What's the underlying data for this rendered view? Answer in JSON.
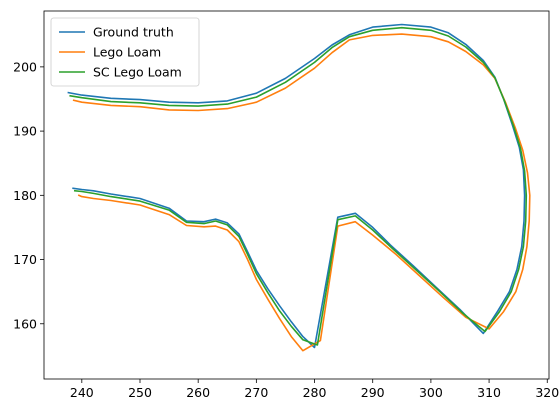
{
  "chart_data": {
    "type": "line",
    "title": "",
    "xlabel": "",
    "ylabel": "",
    "xlim": [
      233.5,
      320.3
    ],
    "ylim": [
      151.4,
      208.7
    ],
    "xticks": [
      240,
      250,
      260,
      270,
      280,
      290,
      300,
      310,
      320
    ],
    "yticks": [
      160,
      170,
      180,
      190,
      200
    ],
    "grid": false,
    "legend_position": "upper left",
    "series": [
      {
        "name": "Ground truth",
        "color": "#1f77b4",
        "x": [
          237.7,
          240.0,
          245.0,
          250.0,
          255.0,
          260.0,
          265.0,
          270.0,
          275.0,
          280.0,
          283.0,
          286.0,
          290.0,
          295.0,
          300.0,
          303.0,
          306.0,
          309.0,
          311.0,
          312.5,
          314.0,
          315.2,
          315.9,
          316.1,
          316.0,
          315.6,
          314.8,
          313.5,
          311.5,
          309.0,
          305.0,
          301.0,
          297.0,
          293.0,
          290.0,
          287.0,
          284.0,
          280.0,
          278.0,
          276.0,
          274.0,
          272.0,
          270.0,
          268.5,
          267.0,
          265.0,
          263.0,
          261.0,
          258.0,
          255.0,
          250.0,
          245.0,
          242.0,
          240.0,
          238.5
        ],
        "y": [
          196.0,
          195.6,
          195.1,
          194.9,
          194.5,
          194.4,
          194.7,
          195.9,
          198.2,
          201.3,
          203.4,
          205.0,
          206.2,
          206.6,
          206.2,
          205.3,
          203.5,
          201.0,
          198.4,
          195.0,
          191.0,
          187.5,
          184.0,
          180.0,
          176.0,
          172.0,
          168.5,
          165.0,
          162.0,
          158.5,
          162.2,
          165.6,
          169.0,
          172.3,
          175.0,
          177.2,
          176.6,
          156.3,
          158.0,
          160.3,
          162.8,
          165.4,
          168.3,
          171.2,
          174.0,
          175.7,
          176.3,
          175.9,
          176.0,
          178.0,
          179.5,
          180.2,
          180.7,
          180.9,
          181.1
        ]
      },
      {
        "name": "Lego Loam",
        "color": "#ff7f0e",
        "x": [
          238.6,
          240.0,
          245.0,
          250.0,
          255.0,
          260.0,
          265.0,
          270.0,
          275.0,
          280.0,
          283.0,
          286.0,
          290.0,
          295.0,
          300.0,
          303.0,
          306.0,
          309.0,
          311.0,
          312.8,
          314.5,
          315.8,
          316.6,
          317.0,
          316.9,
          316.5,
          315.8,
          314.6,
          312.5,
          310.0,
          306.0,
          302.0,
          298.0,
          294.0,
          290.0,
          287.0,
          284.0,
          281.0,
          278.0,
          276.0,
          274.0,
          272.0,
          270.0,
          268.5,
          267.0,
          265.0,
          263.0,
          261.0,
          258.0,
          255.0,
          250.0,
          245.0,
          242.0,
          240.0,
          239.5
        ],
        "y": [
          194.8,
          194.5,
          194.0,
          193.8,
          193.3,
          193.2,
          193.5,
          194.5,
          196.7,
          199.8,
          202.2,
          204.2,
          204.9,
          205.1,
          204.7,
          203.9,
          202.4,
          200.3,
          198.2,
          194.5,
          190.5,
          187.0,
          183.5,
          180.0,
          176.0,
          172.0,
          168.5,
          165.0,
          161.9,
          159.2,
          161.0,
          164.2,
          167.5,
          170.8,
          173.8,
          175.9,
          175.2,
          157.4,
          155.8,
          158.0,
          160.8,
          163.8,
          166.9,
          170.0,
          172.8,
          174.6,
          175.2,
          175.1,
          175.3,
          177.0,
          178.5,
          179.2,
          179.5,
          179.8,
          180.0
        ]
      },
      {
        "name": "SC Lego Loam",
        "color": "#2ca02c",
        "x": [
          238.0,
          240.0,
          245.0,
          250.0,
          255.0,
          260.0,
          265.0,
          270.0,
          275.0,
          280.0,
          283.0,
          286.0,
          290.0,
          295.0,
          300.0,
          303.0,
          306.0,
          309.0,
          311.0,
          312.6,
          314.2,
          315.4,
          316.1,
          316.4,
          316.3,
          315.9,
          315.1,
          313.8,
          311.8,
          309.3,
          305.3,
          301.3,
          297.3,
          293.3,
          290.0,
          287.0,
          284.0,
          280.5,
          278.0,
          276.0,
          274.0,
          272.0,
          270.0,
          268.5,
          267.0,
          265.0,
          263.0,
          261.0,
          258.0,
          255.0,
          250.0,
          245.0,
          242.0,
          240.0,
          238.8
        ],
        "y": [
          195.5,
          195.2,
          194.6,
          194.4,
          194.0,
          193.9,
          194.2,
          195.3,
          197.6,
          200.7,
          203.0,
          204.7,
          205.7,
          206.1,
          205.7,
          204.8,
          203.1,
          200.7,
          198.3,
          194.8,
          190.8,
          187.3,
          183.8,
          180.0,
          176.0,
          172.0,
          168.5,
          165.0,
          161.9,
          158.8,
          161.8,
          165.2,
          168.5,
          171.8,
          174.6,
          176.8,
          176.2,
          156.7,
          157.5,
          159.6,
          162.0,
          164.8,
          167.8,
          170.8,
          173.6,
          175.4,
          176.0,
          175.6,
          175.8,
          177.7,
          179.1,
          179.8,
          180.3,
          180.6,
          180.7
        ]
      }
    ]
  }
}
